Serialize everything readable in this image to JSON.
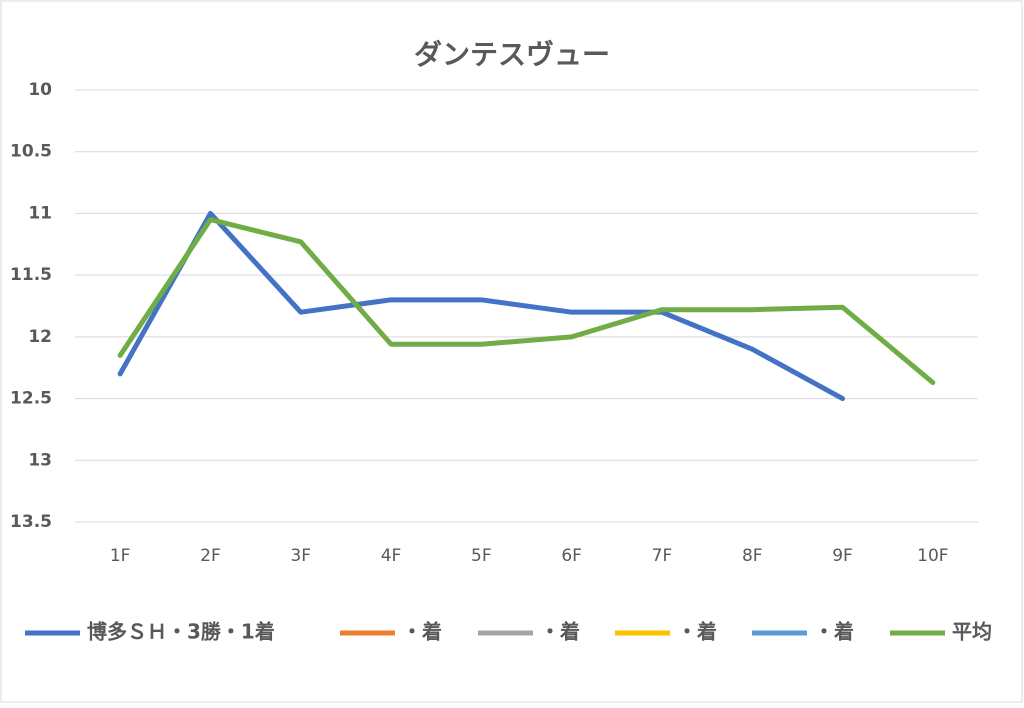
{
  "chart_data": {
    "type": "line",
    "title": "ダンテスヴュー",
    "categories": [
      "1F",
      "2F",
      "3F",
      "4F",
      "5F",
      "6F",
      "7F",
      "8F",
      "9F",
      "10F"
    ],
    "series": [
      {
        "name": "博多ＳＨ・3勝・1着",
        "color": "#4472c4",
        "values": [
          12.3,
          11.0,
          11.8,
          11.7,
          11.7,
          11.8,
          11.8,
          12.1,
          12.5,
          null
        ]
      },
      {
        "name": "・着",
        "color": "#ed7d31",
        "values": [
          null,
          null,
          null,
          null,
          null,
          null,
          null,
          null,
          null,
          null
        ]
      },
      {
        "name": "・着",
        "color": "#a5a5a5",
        "values": [
          null,
          null,
          null,
          null,
          null,
          null,
          null,
          null,
          null,
          null
        ]
      },
      {
        "name": "・着",
        "color": "#ffc000",
        "values": [
          null,
          null,
          null,
          null,
          null,
          null,
          null,
          null,
          null,
          null
        ]
      },
      {
        "name": "・着",
        "color": "#5b9bd5",
        "values": [
          null,
          null,
          null,
          null,
          null,
          null,
          null,
          null,
          null,
          null
        ]
      },
      {
        "name": "平均",
        "color": "#70ad47",
        "values": [
          12.15,
          11.05,
          11.23,
          12.06,
          12.06,
          12.0,
          11.78,
          11.78,
          11.76,
          12.37
        ]
      }
    ],
    "ylim": [
      10,
      13.5
    ],
    "y_inverted": true,
    "yticks": [
      10,
      10.5,
      11,
      11.5,
      12,
      12.5,
      13,
      13.5
    ],
    "grid": true,
    "legend": "bottom"
  }
}
